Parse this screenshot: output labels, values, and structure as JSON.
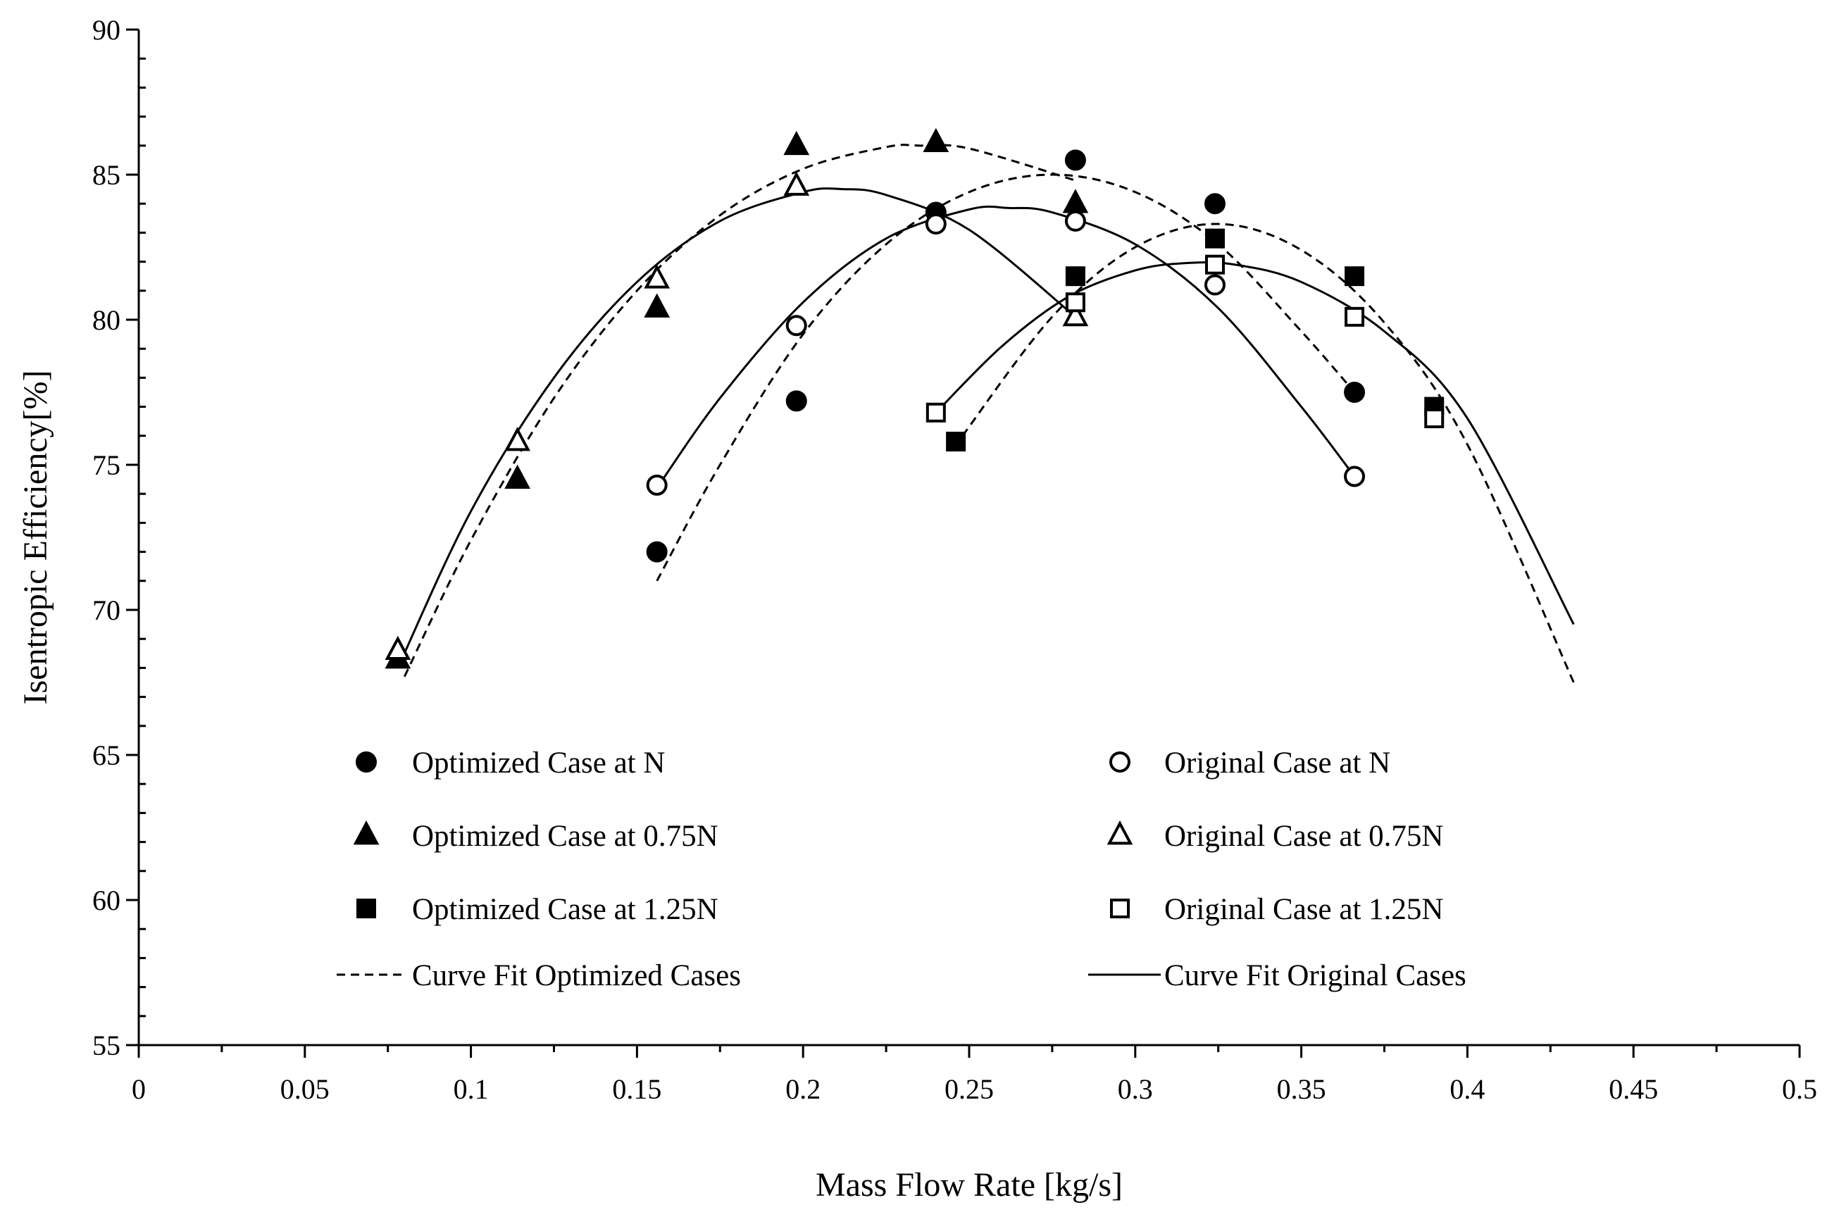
{
  "chart_data": {
    "type": "scatter",
    "title": "",
    "xlabel": "Mass Flow Rate [kg/s]",
    "ylabel": "Isentropic Efficiency[%]",
    "xlim": [
      0,
      0.5
    ],
    "ylim": [
      55,
      90
    ],
    "x_ticks": [
      0,
      0.05,
      0.1,
      0.15,
      0.2,
      0.25,
      0.3,
      0.35,
      0.4,
      0.45,
      0.5
    ],
    "x_tick_labels": [
      "0",
      "0.05",
      "0.1",
      "0.15",
      "0.2",
      "0.25",
      "0.3",
      "0.35",
      "0.4",
      "0.45",
      "0.5"
    ],
    "y_ticks": [
      55,
      60,
      65,
      70,
      75,
      80,
      85,
      90
    ],
    "y_tick_labels": [
      "55",
      "60",
      "65",
      "70",
      "75",
      "80",
      "85",
      "90"
    ],
    "grid": false,
    "legend_position": "bottom-inside",
    "series": [
      {
        "name": "Optimized Case at  N",
        "marker": "circle-filled",
        "x": [
          0.156,
          0.198,
          0.24,
          0.282,
          0.324,
          0.366
        ],
        "y": [
          72.0,
          77.2,
          83.7,
          85.5,
          84.0,
          77.5
        ]
      },
      {
        "name": "Optimized Case at  0.75N",
        "marker": "triangle-filled",
        "x": [
          0.078,
          0.114,
          0.156,
          0.198,
          0.24,
          0.282
        ],
        "y": [
          68.3,
          74.5,
          80.4,
          86.0,
          86.1,
          84.0
        ]
      },
      {
        "name": "Optimized Case at  1.25N",
        "marker": "square-filled",
        "x": [
          0.246,
          0.282,
          0.324,
          0.366,
          0.39
        ],
        "y": [
          75.8,
          81.5,
          82.8,
          81.5,
          77.0
        ]
      },
      {
        "name": "Original Case at  N",
        "marker": "circle-open",
        "x": [
          0.156,
          0.198,
          0.24,
          0.282,
          0.324,
          0.366
        ],
        "y": [
          74.3,
          79.8,
          83.3,
          83.4,
          81.2,
          74.6
        ]
      },
      {
        "name": "Original Case at  0.75N",
        "marker": "triangle-open",
        "x": [
          0.078,
          0.114,
          0.156,
          0.198,
          0.282
        ],
        "y": [
          68.6,
          75.8,
          81.4,
          84.6,
          80.1
        ]
      },
      {
        "name": "Original Case at  1.25N",
        "marker": "square-open",
        "x": [
          0.24,
          0.282,
          0.324,
          0.366,
          0.39
        ],
        "y": [
          76.8,
          80.6,
          81.9,
          80.1,
          76.6
        ]
      }
    ],
    "curve_fits": [
      {
        "name": "Curve Fit Optimized Cases",
        "style": "dashed",
        "group": "N",
        "x": [
          0.156,
          0.175,
          0.2,
          0.225,
          0.25,
          0.275,
          0.3,
          0.325,
          0.35,
          0.366
        ],
        "y": [
          71.0,
          75.0,
          79.5,
          82.6,
          84.4,
          85.0,
          84.4,
          82.6,
          79.6,
          77.5
        ]
      },
      {
        "name": "Curve Fit Optimized Cases",
        "style": "dashed",
        "group": "0.75N",
        "x": [
          0.08,
          0.1,
          0.125,
          0.15,
          0.175,
          0.2,
          0.225,
          0.235,
          0.25,
          0.282
        ],
        "y": [
          67.7,
          72.4,
          77.3,
          81.0,
          83.6,
          85.2,
          85.95,
          86.0,
          85.9,
          84.8
        ]
      },
      {
        "name": "Curve Fit Optimized Cases",
        "style": "dashed",
        "group": "1.25N",
        "x": [
          0.248,
          0.275,
          0.3,
          0.325,
          0.35,
          0.375,
          0.4,
          0.432
        ],
        "y": [
          76.0,
          80.1,
          82.5,
          83.3,
          82.4,
          79.9,
          75.7,
          67.5
        ]
      },
      {
        "name": "Curve Fit Original Cases",
        "style": "solid",
        "group": "N",
        "x": [
          0.156,
          0.175,
          0.2,
          0.225,
          0.25,
          0.262,
          0.275,
          0.3,
          0.325,
          0.35,
          0.366
        ],
        "y": [
          74.2,
          77.3,
          80.6,
          82.8,
          83.8,
          83.85,
          83.7,
          82.6,
          80.4,
          77.0,
          74.6
        ]
      },
      {
        "name": "Curve Fit Original Cases",
        "style": "solid",
        "group": "0.75N",
        "x": [
          0.078,
          0.1,
          0.125,
          0.15,
          0.175,
          0.2,
          0.212,
          0.225,
          0.25,
          0.282
        ],
        "y": [
          68.0,
          73.4,
          78.0,
          81.3,
          83.4,
          84.4,
          84.5,
          84.3,
          83.1,
          80.1
        ]
      },
      {
        "name": "Curve Fit Original Cases",
        "style": "solid",
        "group": "1.25N",
        "x": [
          0.24,
          0.26,
          0.28,
          0.3,
          0.315,
          0.33,
          0.35,
          0.375,
          0.4,
          0.432
        ],
        "y": [
          76.8,
          79.1,
          80.8,
          81.7,
          81.95,
          81.9,
          81.3,
          79.6,
          76.6,
          69.5
        ]
      }
    ],
    "legend": [
      {
        "label": "Optimized Case at  N",
        "symbol": "circle-filled",
        "column": 0
      },
      {
        "label": "Optimized Case at  0.75N",
        "symbol": "triangle-filled",
        "column": 0
      },
      {
        "label": "Optimized Case at  1.25N",
        "symbol": "square-filled",
        "column": 0
      },
      {
        "label": "Curve Fit Optimized Cases",
        "symbol": "dashed-line",
        "column": 0
      },
      {
        "label": "Original Case at  N",
        "symbol": "circle-open",
        "column": 1
      },
      {
        "label": "Original Case at  0.75N",
        "symbol": "triangle-open",
        "column": 1
      },
      {
        "label": "Original Case at  1.25N",
        "symbol": "square-open",
        "column": 1
      },
      {
        "label": "Curve Fit Original Cases",
        "symbol": "solid-line",
        "column": 1
      }
    ]
  }
}
